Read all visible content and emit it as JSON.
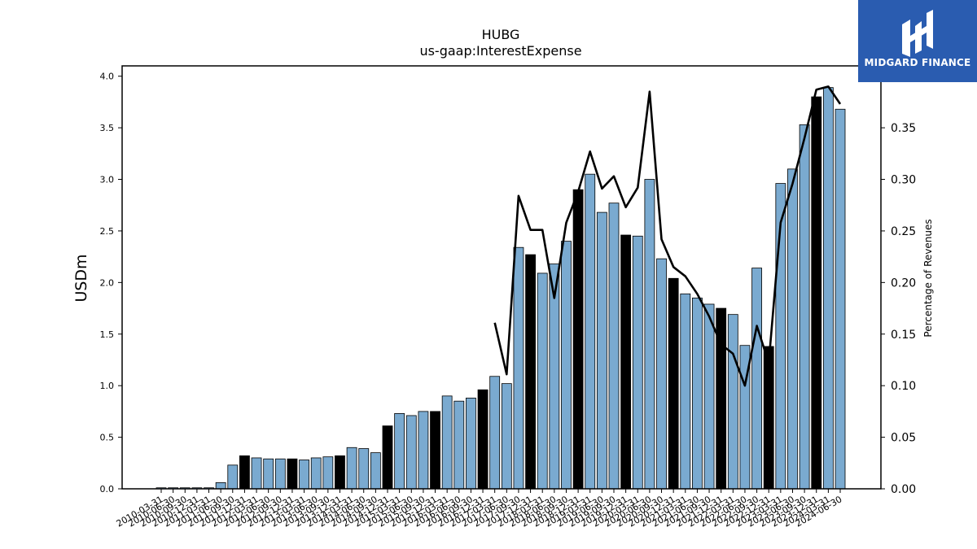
{
  "brand": {
    "name": "MIDGARD FINANCE",
    "bg_color": "#2a5cb0"
  },
  "chart_data": {
    "type": "bar",
    "title": "HUBG",
    "subtitle": "us-gaap:InterestExpense",
    "ylabel": "USDm",
    "y2label": "Percentage of Revenues",
    "ylim": [
      0,
      4.1
    ],
    "y2lim": [
      0,
      0.41
    ],
    "yticks": [
      "0.0",
      "0.5",
      "1.0",
      "1.5",
      "2.0",
      "2.5",
      "3.0",
      "3.5",
      "4.0"
    ],
    "y2ticks": [
      "0.00",
      "0.05",
      "0.10",
      "0.15",
      "0.20",
      "0.25",
      "0.30",
      "0.35"
    ],
    "grid": false,
    "bar_color": "#7aaad0",
    "highlight_color": "#000000",
    "line_color": "#000000",
    "categories": [
      "2010-03-31",
      "2010-06-30",
      "2010-09-30",
      "2010-12-31",
      "2011-03-31",
      "2011-06-30",
      "2011-09-30",
      "2011-12-31",
      "2012-03-31",
      "2012-06-30",
      "2012-09-30",
      "2012-12-31",
      "2013-03-31",
      "2013-06-30",
      "2013-09-30",
      "2013-12-31",
      "2014-03-31",
      "2014-06-30",
      "2014-09-30",
      "2014-12-31",
      "2015-03-31",
      "2015-06-30",
      "2015-09-30",
      "2015-12-31",
      "2016-03-31",
      "2016-06-30",
      "2016-09-30",
      "2016-12-31",
      "2017-03-31",
      "2017-06-30",
      "2017-09-30",
      "2017-12-31",
      "2018-03-31",
      "2018-06-30",
      "2018-09-30",
      "2018-12-31",
      "2019-03-31",
      "2019-06-30",
      "2019-09-30",
      "2019-12-31",
      "2020-03-31",
      "2020-06-30",
      "2020-09-30",
      "2020-12-31",
      "2021-03-31",
      "2021-06-30",
      "2021-09-30",
      "2021-12-31",
      "2022-03-31",
      "2022-06-30",
      "2022-09-30",
      "2022-12-31",
      "2023-03-31",
      "2023-06-30",
      "2023-09-30",
      "2023-12-31",
      "2024-03-31",
      "2024-06-30"
    ],
    "values": [
      0.01,
      0.01,
      0.01,
      0.01,
      0.01,
      0.06,
      0.23,
      0.32,
      0.3,
      0.29,
      0.29,
      0.29,
      0.28,
      0.3,
      0.31,
      0.32,
      0.4,
      0.39,
      0.35,
      0.61,
      0.73,
      0.71,
      0.75,
      0.75,
      0.9,
      0.85,
      0.88,
      0.96,
      1.09,
      1.02,
      2.34,
      2.27,
      2.09,
      2.18,
      2.4,
      2.9,
      3.05,
      2.68,
      2.77,
      2.46,
      2.45,
      3.0,
      2.23,
      2.04,
      1.89,
      1.85,
      1.79,
      1.75,
      1.69,
      1.39,
      2.14,
      1.38,
      2.96,
      3.1,
      3.53,
      3.8,
      3.89,
      3.68
    ],
    "highlight": [
      false,
      false,
      false,
      false,
      false,
      false,
      false,
      true,
      false,
      false,
      false,
      true,
      false,
      false,
      false,
      true,
      false,
      false,
      false,
      true,
      false,
      false,
      false,
      true,
      false,
      false,
      false,
      true,
      false,
      false,
      false,
      true,
      false,
      false,
      false,
      true,
      false,
      false,
      false,
      true,
      false,
      false,
      false,
      true,
      false,
      false,
      false,
      true,
      false,
      false,
      false,
      true,
      false,
      false,
      false,
      true,
      false,
      false
    ],
    "line_series": {
      "name": "Percentage of Revenues",
      "axis": "right",
      "start_index": 28,
      "values": [
        0.161,
        0.111,
        0.284,
        0.251,
        0.251,
        0.185,
        0.258,
        0.288,
        0.327,
        0.291,
        0.303,
        0.273,
        0.292,
        0.385,
        0.242,
        0.215,
        0.206,
        0.189,
        0.167,
        0.14,
        0.131,
        0.1,
        0.158,
        0.122,
        0.258,
        0.296,
        0.34,
        0.387,
        0.39,
        0.373
      ]
    }
  }
}
